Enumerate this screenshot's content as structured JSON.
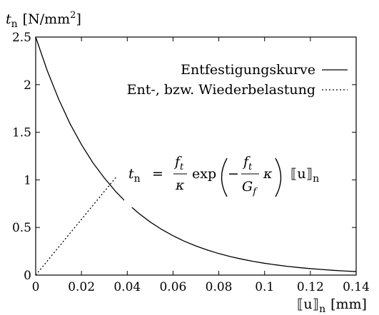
{
  "chart_data": {
    "type": "line",
    "title": "",
    "xlabel": "[[u]]n [mm]",
    "ylabel": "tn [N/mm2]",
    "xlim": [
      0,
      0.14
    ],
    "ylim": [
      0,
      2.5
    ],
    "x_ticks": [
      "0",
      "0.02",
      "0.04",
      "0.06",
      "0.08",
      "0.1",
      "0.12",
      "0.14"
    ],
    "y_ticks": [
      "0",
      "0.5",
      "1",
      "1.5",
      "2",
      "2.5"
    ],
    "legend_position": "top-right",
    "series": [
      {
        "name": "Entfestigungskurve",
        "style": "solid",
        "x": [
          0,
          0.005,
          0.01,
          0.015,
          0.02,
          0.025,
          0.03,
          0.035,
          0.04,
          0.045,
          0.05,
          0.055,
          0.06,
          0.065,
          0.07,
          0.075,
          0.08,
          0.085,
          0.09,
          0.095,
          0.1,
          0.105,
          0.11,
          0.115,
          0.12,
          0.125,
          0.13,
          0.135,
          0.14
        ],
        "y": [
          2.5,
          2.15,
          1.85,
          1.59,
          1.37,
          1.18,
          1.02,
          0.876,
          0.754,
          0.649,
          0.558,
          0.48,
          0.413,
          0.355,
          0.306,
          0.263,
          0.226,
          0.195,
          0.168,
          0.144,
          0.124,
          0.107,
          0.092,
          0.079,
          0.068,
          0.059,
          0.05,
          0.043,
          0.037
        ]
      },
      {
        "name": "Ent-, bzw. Wiederbelastung",
        "style": "dotted",
        "x": [
          0,
          0.0355
        ],
        "y": [
          0,
          1.04
        ]
      }
    ],
    "legend": {
      "solid_label": "Entfestigungskurve",
      "dotted_label": "Ent-, bzw. Wiederbelastung"
    },
    "annotation": {
      "lhs": "t",
      "lhs_sub": "n",
      "equals": "=",
      "frac1_num": "f",
      "frac1_num_sub": "t",
      "frac1_den": "κ",
      "exp": "exp",
      "frac2_num": "f",
      "frac2_num_sub": "t",
      "frac2_den": "G",
      "frac2_den_sub": "f",
      "kappa": "κ",
      "minus": "−",
      "jump": "⟦u⟧",
      "jump_sub": "n"
    },
    "axis_text": {
      "y_var": "t",
      "y_sub": "n",
      "y_unit": "[N/mm",
      "y_unit_sup": "2",
      "y_unit_close": "]",
      "x_var": "⟦u⟧",
      "x_sub": "n",
      "x_unit": "[mm]"
    }
  }
}
